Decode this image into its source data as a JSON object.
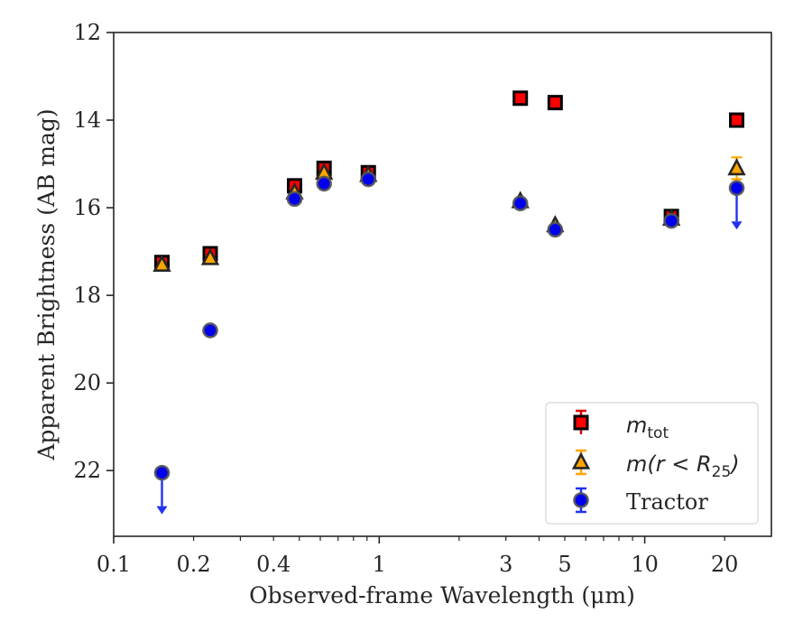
{
  "chart_data": {
    "type": "scatter",
    "xlabel": "Observed-frame Wavelength (μm)",
    "ylabel": "Apparent Brightness (AB mag)",
    "xscale": "log",
    "xlim": [
      0.1,
      30
    ],
    "ylim": [
      23.5,
      12
    ],
    "y_inverted": true,
    "x_tick_labels": [
      {
        "value": 0.1,
        "label": "0.1"
      },
      {
        "value": 0.2,
        "label": "0.2"
      },
      {
        "value": 0.4,
        "label": "0.4"
      },
      {
        "value": 1,
        "label": "1"
      },
      {
        "value": 3,
        "label": "3"
      },
      {
        "value": 5,
        "label": "5"
      },
      {
        "value": 10,
        "label": "10"
      },
      {
        "value": 20,
        "label": "20"
      }
    ],
    "y_ticks": [
      12,
      14,
      16,
      18,
      20,
      22
    ],
    "legend_position": "lower right",
    "series": [
      {
        "name": "m_tot",
        "marker": "square",
        "color": "#ff0000",
        "edge": "#000000",
        "points": [
          {
            "x": 0.152,
            "y": 17.25
          },
          {
            "x": 0.231,
            "y": 17.05
          },
          {
            "x": 0.48,
            "y": 15.5
          },
          {
            "x": 0.62,
            "y": 15.1
          },
          {
            "x": 0.91,
            "y": 15.2
          },
          {
            "x": 3.4,
            "y": 13.5
          },
          {
            "x": 4.6,
            "y": 13.6
          },
          {
            "x": 12.6,
            "y": 16.2
          },
          {
            "x": 22.2,
            "y": 14.0
          }
        ]
      },
      {
        "name": "m(r < R25)",
        "marker": "triangle",
        "color": "#ffa500",
        "edge": "#262626",
        "points": [
          {
            "x": 0.152,
            "y": 17.3,
            "err": 0.08
          },
          {
            "x": 0.231,
            "y": 17.15,
            "err": 0.08
          },
          {
            "x": 0.48,
            "y": 15.65,
            "err": 0.05
          },
          {
            "x": 0.62,
            "y": 15.2,
            "err": 0.05
          },
          {
            "x": 0.91,
            "y": 15.25,
            "err": 0.05
          },
          {
            "x": 3.4,
            "y": 15.85,
            "err": 0.05
          },
          {
            "x": 4.6,
            "y": 16.4,
            "err": 0.05
          },
          {
            "x": 12.6,
            "y": 16.25,
            "err": 0.05
          },
          {
            "x": 22.2,
            "y": 15.1,
            "err": 0.25
          }
        ]
      },
      {
        "name": "Tractor",
        "marker": "circle",
        "color": "#0000ff",
        "edge": "#555555",
        "points": [
          {
            "x": 0.152,
            "y": 22.05,
            "upper_limit": true
          },
          {
            "x": 0.231,
            "y": 18.8
          },
          {
            "x": 0.48,
            "y": 15.8
          },
          {
            "x": 0.62,
            "y": 15.45
          },
          {
            "x": 0.91,
            "y": 15.35
          },
          {
            "x": 3.4,
            "y": 15.9
          },
          {
            "x": 4.6,
            "y": 16.5
          },
          {
            "x": 12.6,
            "y": 16.3
          },
          {
            "x": 22.2,
            "y": 15.55,
            "upper_limit": true
          }
        ]
      }
    ]
  },
  "legend": {
    "items": [
      {
        "key": "m_tot",
        "main": "m",
        "sub": "tot",
        "style": "math-sub"
      },
      {
        "key": "m_r25",
        "prefix": "m(r < R",
        "sub": "25",
        "suffix": ")",
        "style": "math-sub"
      },
      {
        "key": "tractor",
        "text": "Tractor",
        "style": "plain"
      }
    ]
  }
}
